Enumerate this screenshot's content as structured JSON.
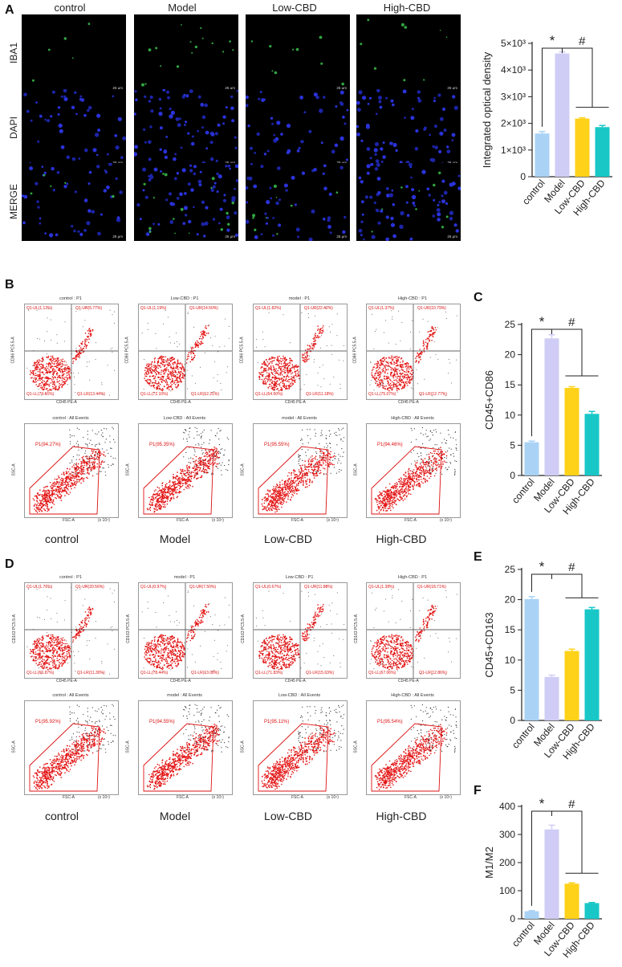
{
  "panel_letters": {
    "A": "A",
    "B": "B",
    "C": "C",
    "D": "D",
    "E": "E",
    "F": "F"
  },
  "groups": [
    "control",
    "Model",
    "Low-CBD",
    "High-CBD"
  ],
  "panel_a": {
    "row_labels": [
      "IBA1",
      "DAPI",
      "MERGE"
    ],
    "scale_bar": "25 μm"
  },
  "flow_b": {
    "quadrant_titles": [
      "control : P1",
      "Low-CBD : P1",
      "model : P1",
      "High-CBD : P1"
    ],
    "y_axis": "CD86 PC5.5-A",
    "x_axis": "CD45 PE-A",
    "quadrants": [
      {
        "ul": "Q1-UL(1.13%)",
        "ur": "Q1-UR(5.77%)",
        "ll": "Q1-LL(79.66%)",
        "lr": "Q1-LR(13.44%)"
      },
      {
        "ul": "Q1-UL(1.19%)",
        "ur": "Q1-UR(14.50%)",
        "ll": "Q1-LL(72.10%)",
        "lr": "Q1-LR(12.21%)"
      },
      {
        "ul": "Q1-UL(1.82%)",
        "ur": "Q1-UR(22.42%)",
        "ll": "Q1-LL(64.50%)",
        "lr": "Q1-LR(11.18%)"
      },
      {
        "ul": "Q1-UL(1.37%)",
        "ur": "Q1-UR(10.79%)",
        "ll": "Q1-LL(75.07%)",
        "lr": "Q1-LR(12.77%)"
      }
    ],
    "scatter_titles": [
      "control : All Events",
      "Low-CBD : All Events",
      "model : All Events",
      "High-CBD : All Events"
    ],
    "gates": [
      "P1(94.27%)",
      "P1(95.35%)",
      "P1(95.55%)",
      "P1(94.46%)"
    ],
    "scatter_y": "SSC-A",
    "scatter_x": "FSC-A",
    "scale_note": "(x 10⁴)"
  },
  "flow_d": {
    "quadrant_titles": [
      "control : P1",
      "model : P1",
      "Low-CBD : P1",
      "High-CBD : P1"
    ],
    "y_axis": "CD163 PC5.5-A",
    "x_axis": "CD45 PE-A",
    "quadrants": [
      {
        "ul": "Q1-UL(1.76%)",
        "ur": "Q1-UR(20.56%)",
        "ll": "Q1-LL(66.37%)",
        "lr": "Q1-LR(11.30%)"
      },
      {
        "ul": "Q1-UL(0.97%)",
        "ur": "Q1-UR(7.50%)",
        "ll": "Q1-LL(78.44%)",
        "lr": "Q1-LR(13.08%)"
      },
      {
        "ul": "Q1-UL(0.67%)",
        "ur": "Q1-UR(11.88%)",
        "ll": "Q1-LL(71.83%)",
        "lr": "Q1-LR(15.63%)"
      },
      {
        "ul": "Q1-UL(1.38%)",
        "ur": "Q1-UR(18.71%)",
        "ll": "Q1-LL(67.06%)",
        "lr": "Q1-LR(12.86%)"
      }
    ],
    "scatter_titles": [
      "control : All Events",
      "model : All Events",
      "Low-CBD : All Events",
      "High-CBD : All Events"
    ],
    "gates": [
      "P1(95.92%)",
      "P1(94.55%)",
      "P1(95.11%)",
      "P1(95.54%)"
    ],
    "scatter_y": "SSC-A",
    "scatter_x": "FSC-A",
    "scale_note": "(x 10⁴)"
  },
  "chart_data": [
    {
      "id": "A",
      "type": "bar",
      "categories": [
        "control",
        "Model",
        "Low-CBD",
        "High-CBD"
      ],
      "values": [
        1620,
        4620,
        2180,
        1860
      ],
      "errors": [
        70,
        60,
        30,
        60
      ],
      "ylabel": "Integrated optical density",
      "ylim": [
        0,
        5000
      ],
      "ticks": [
        0,
        1000,
        2000,
        3000,
        4000,
        5000
      ],
      "tick_labels": [
        "0",
        "1×10³",
        "2×10³",
        "3×10³",
        "4×10³",
        "5×10³"
      ],
      "colors": [
        "#a9d2f5",
        "#cfcdf5",
        "#ffd21a",
        "#19c7c7"
      ],
      "annotations": [
        "*",
        "#"
      ]
    },
    {
      "id": "C",
      "type": "bar",
      "categories": [
        "control",
        "Model",
        "Low-CBD",
        "High-CBD"
      ],
      "values": [
        5.5,
        22.7,
        14.5,
        10.2
      ],
      "errors": [
        0.2,
        0.6,
        0.2,
        0.4
      ],
      "ylabel": "CD45+CD86",
      "ylim": [
        0,
        25
      ],
      "ticks": [
        0,
        5,
        10,
        15,
        20,
        25
      ],
      "tick_labels": [
        "0",
        "5",
        "10",
        "15",
        "20",
        "25"
      ],
      "colors": [
        "#a9d2f5",
        "#cfcdf5",
        "#ffd21a",
        "#19c7c7"
      ],
      "annotations": [
        "*",
        "#"
      ]
    },
    {
      "id": "E",
      "type": "bar",
      "categories": [
        "control",
        "Model",
        "Low-CBD",
        "High-CBD"
      ],
      "values": [
        20.1,
        7.2,
        11.5,
        18.4
      ],
      "errors": [
        0.4,
        0.3,
        0.3,
        0.3
      ],
      "ylabel": "CD45+CD163",
      "ylim": [
        0,
        25
      ],
      "ticks": [
        0,
        5,
        10,
        15,
        20,
        25
      ],
      "tick_labels": [
        "0",
        "5",
        "10",
        "15",
        "20",
        "25"
      ],
      "colors": [
        "#a9d2f5",
        "#cfcdf5",
        "#ffd21a",
        "#19c7c7"
      ],
      "annotations": [
        "*",
        "#"
      ]
    },
    {
      "id": "F",
      "type": "bar",
      "categories": [
        "control",
        "Model",
        "Low-CBD",
        "High-CBD"
      ],
      "values": [
        27,
        318,
        125,
        56
      ],
      "errors": [
        2,
        15,
        3,
        2
      ],
      "ylabel": "M1/M2",
      "ylim": [
        0,
        400
      ],
      "ticks": [
        0,
        100,
        200,
        300,
        400
      ],
      "tick_labels": [
        "0",
        "100",
        "200",
        "300",
        "400"
      ],
      "colors": [
        "#a9d2f5",
        "#cfcdf5",
        "#ffd21a",
        "#19c7c7"
      ],
      "annotations": [
        "*",
        "#"
      ]
    }
  ]
}
